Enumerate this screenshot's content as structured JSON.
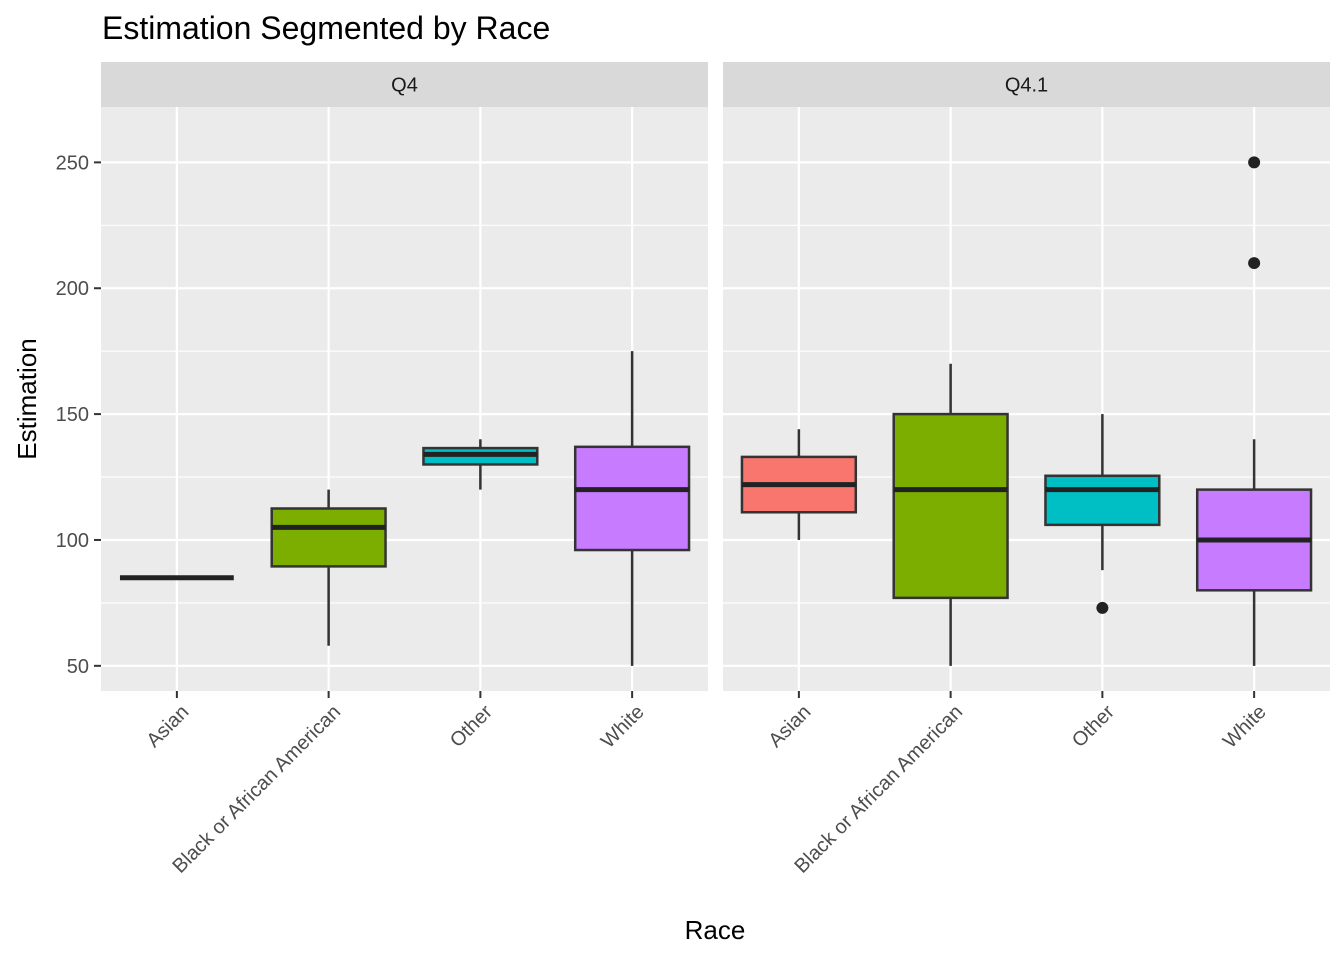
{
  "chart_data": {
    "type": "boxplot",
    "title": "Estimation Segmented by Race",
    "xlabel": "Race",
    "ylabel": "Estimation",
    "ylim": [
      40,
      272
    ],
    "yticks": [
      50,
      100,
      150,
      200,
      250
    ],
    "grid": true,
    "legend": "none",
    "categories": [
      "Asian",
      "Black or African American",
      "Other",
      "White"
    ],
    "colors": {
      "Asian": "#F8766D",
      "Black or African American": "#7CAE00",
      "Other": "#00BFC4",
      "White": "#C77CFF"
    },
    "panels": [
      {
        "label": "Q4",
        "boxes": [
          {
            "category": "Asian",
            "min": 85,
            "q1": 85,
            "median": 85,
            "q3": 85,
            "max": 85,
            "outliers": []
          },
          {
            "category": "Black or African American",
            "min": 58,
            "q1": 89.5,
            "median": 105,
            "q3": 112.5,
            "max": 120,
            "outliers": []
          },
          {
            "category": "Other",
            "min": 120,
            "q1": 130,
            "median": 134,
            "q3": 136.5,
            "max": 140,
            "outliers": []
          },
          {
            "category": "White",
            "min": 50,
            "q1": 96,
            "median": 120,
            "q3": 137,
            "max": 175,
            "outliers": []
          }
        ]
      },
      {
        "label": "Q4.1",
        "boxes": [
          {
            "category": "Asian",
            "min": 100,
            "q1": 111,
            "median": 122,
            "q3": 133,
            "max": 144,
            "outliers": []
          },
          {
            "category": "Black or African American",
            "min": 50,
            "q1": 77,
            "median": 120,
            "q3": 150,
            "max": 170,
            "outliers": []
          },
          {
            "category": "Other",
            "min": 88,
            "q1": 106,
            "median": 120,
            "q3": 125.5,
            "max": 150,
            "outliers": [
              73
            ]
          },
          {
            "category": "White",
            "min": 50,
            "q1": 80,
            "median": 100,
            "q3": 120,
            "max": 140,
            "outliers": [
              210,
              250
            ]
          }
        ]
      }
    ]
  }
}
